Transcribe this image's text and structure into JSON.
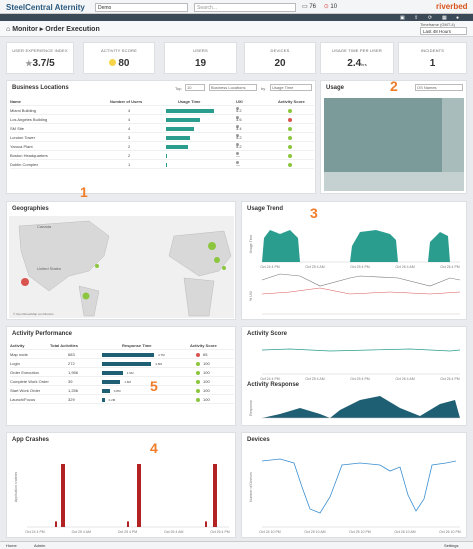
{
  "app": {
    "logo": "SteelCentral Aternity",
    "selector": "Demo",
    "search_placeholder": "Search...",
    "alerts": "76",
    "errors": "10",
    "brand": "riverbed"
  },
  "header": {
    "breadcrumb": "Monitor",
    "title": "Order Execution",
    "timeframe_label": "Timeframe (GMT-4)",
    "timeframe": "Last 48 Hours"
  },
  "kpis": [
    {
      "label": "USER EXPERIENCE INDEX",
      "value": "3.7/5"
    },
    {
      "label": "ACTIVITY SCORE",
      "value": "80"
    },
    {
      "label": "USERS",
      "value": "19"
    },
    {
      "label": "DEVICES",
      "value": "20"
    },
    {
      "label": "USAGE TIME PER USER",
      "value": "2.4",
      "unit": "hrs"
    },
    {
      "label": "INCIDENTS",
      "value": "1"
    }
  ],
  "business_locations": {
    "title": "Business Locations",
    "controls": {
      "top_label": "Top",
      "top_value": "10",
      "by_value": "Business Locations",
      "by_label": "by",
      "metric_value": "Usage Time"
    },
    "columns": [
      "Name",
      "Number of Users",
      "Usage Time",
      "UXI",
      "Activity Score"
    ],
    "rows": [
      {
        "name": "Miami Building",
        "users": "4",
        "usage": 1.0,
        "uxi": "4.2",
        "score_color": "#8cc63f"
      },
      {
        "name": "Los Angeles Building",
        "users": "4",
        "usage": 0.7,
        "uxi": "3.6",
        "score_color": "#d9534f"
      },
      {
        "name": "SM Site",
        "users": "4",
        "usage": 0.58,
        "uxi": "3.4",
        "score_color": "#8cc63f"
      },
      {
        "name": "London Tower",
        "users": "3",
        "usage": 0.5,
        "uxi": "4.2",
        "score_color": "#8cc63f"
      },
      {
        "name": "Yaroca Plant",
        "users": "2",
        "usage": 0.45,
        "uxi": "4.2",
        "score_color": "#8cc63f"
      },
      {
        "name": "Boston Headquarters",
        "users": "2",
        "usage": 0.03,
        "uxi": "—",
        "score_color": "#8cc63f"
      },
      {
        "name": "Dublin Complex",
        "users": "1",
        "usage": 0.02,
        "uxi": "—",
        "score_color": "#8cc63f"
      }
    ]
  },
  "usage": {
    "title": "Usage",
    "selector": "OS Names"
  },
  "geographies": {
    "title": "Geographies",
    "country_label": "Canada",
    "region_label": "United States",
    "attribution": "© OpenStreetMap contributors"
  },
  "usage_trend": {
    "title": "Usage Trend",
    "ylabel_top": "Usage Time",
    "ylabel_bottom": "% UXI",
    "ticks": [
      "Oct 24 4 PM",
      "Oct 25 4 AM",
      "Oct 25 4 PM",
      "Oct 26 4 AM",
      "Oct 26 4 PM"
    ]
  },
  "activity_performance": {
    "title": "Activity Performance",
    "columns": [
      "Activity",
      "Total Activities",
      "Response Time",
      "Activity Score"
    ],
    "rows": [
      {
        "name": "Map node",
        "total": "683",
        "resp": 1.0,
        "resp_label": "4.7M",
        "score": "65",
        "color": "#d9534f"
      },
      {
        "name": "Login",
        "total": "272",
        "resp": 0.95,
        "resp_label": "4.5M",
        "score": "100",
        "color": "#8cc63f"
      },
      {
        "name": "Order Execution",
        "total": "1,956",
        "resp": 0.4,
        "resp_label": "1.9M",
        "score": "100",
        "color": "#8cc63f"
      },
      {
        "name": "Complete Work Order",
        "total": "39",
        "resp": 0.35,
        "resp_label": "1.6M",
        "score": "100",
        "color": "#8cc63f"
      },
      {
        "name": "Start Work Order",
        "total": "1,256",
        "resp": 0.15,
        "resp_label": "0.8M",
        "score": "100",
        "color": "#8cc63f"
      },
      {
        "name": "Launch/Focus",
        "total": "329",
        "resp": 0.05,
        "resp_label": "0.2M",
        "score": "100",
        "color": "#8cc63f"
      }
    ]
  },
  "activity_score": {
    "title": "Activity Score"
  },
  "activity_response": {
    "title": "Activity Response",
    "ylabel": "Response",
    "ticks": [
      "Oct 24 4 PM",
      "Oct 25 4 AM",
      "Oct 25 4 PM",
      "Oct 26 4 AM",
      "Oct 26 4 PM"
    ]
  },
  "app_crashes": {
    "title": "App Crashes",
    "ylabel": "Application crashes",
    "ticks": [
      "Oct 24 4 PM",
      "Oct 25 4 AM",
      "Oct 25 4 PM",
      "Oct 26 4 AM",
      "Oct 26 4 PM"
    ]
  },
  "devices": {
    "title": "Devices",
    "ylabel": "Number of Devices",
    "ticks": [
      "Oct 24 10 PM",
      "Oct 25 10 AM",
      "Oct 25 10 PM",
      "Oct 26 10 AM",
      "Oct 26 10 PM"
    ]
  },
  "annotations": [
    "1",
    "2",
    "3",
    "4",
    "5"
  ],
  "footer": {
    "left1": "Home",
    "left2": "Admin",
    "right": "Settings"
  },
  "colors": {
    "teal": "#2a9d8f",
    "dark_teal": "#1f5f73",
    "crash_red": "#b22222",
    "line_blue": "#3b8ed0",
    "accent": "#f07c28"
  }
}
